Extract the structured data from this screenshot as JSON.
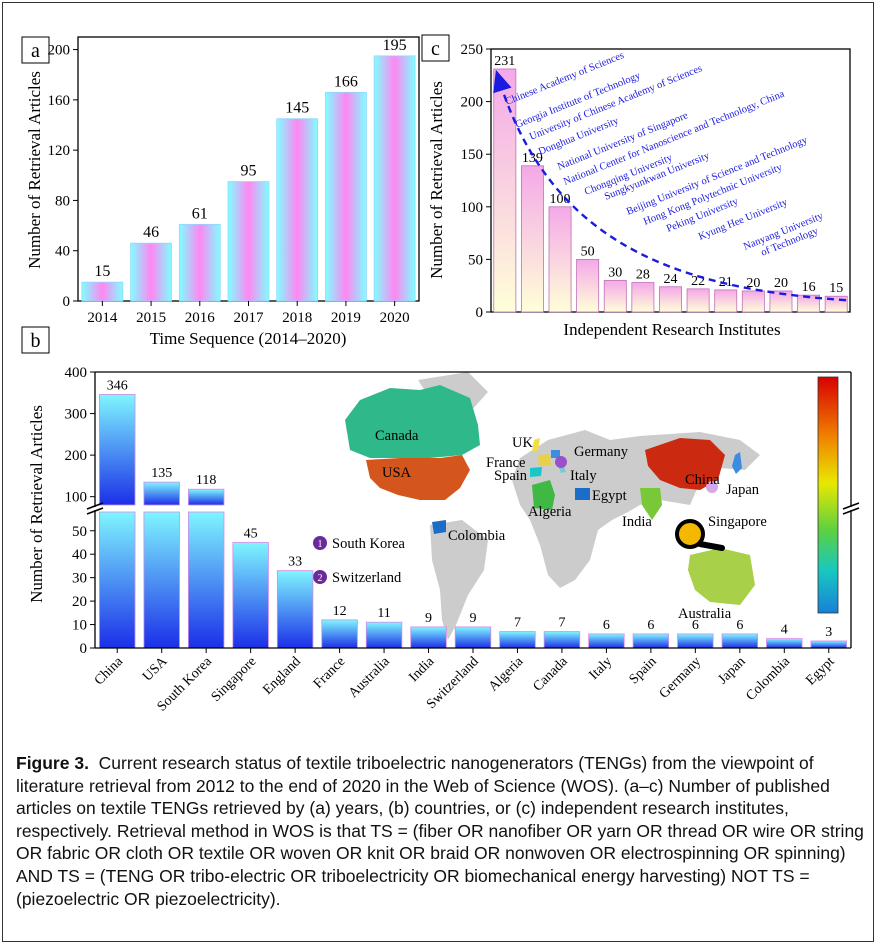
{
  "panels": {
    "a": {
      "letter": "a"
    },
    "b": {
      "letter": "b"
    },
    "c": {
      "letter": "c"
    }
  },
  "legend_b": {
    "items": [
      {
        "num": "1",
        "label": "South Korea"
      },
      {
        "num": "2",
        "label": "Switzerland"
      }
    ]
  },
  "map_labels": [
    "Canada",
    "USA",
    "UK",
    "Germany",
    "France",
    "Spain",
    "Italy",
    "Algeria",
    "Egypt",
    "China",
    "Japan",
    "India",
    "Singapore",
    "Colombia",
    "Australia"
  ],
  "chart_data": [
    {
      "type": "bar",
      "panel": "a",
      "categories": [
        "2014",
        "2015",
        "2016",
        "2017",
        "2018",
        "2019",
        "2020"
      ],
      "values": [
        15,
        46,
        61,
        95,
        145,
        166,
        195
      ],
      "xlabel": "Time Sequence (2014–2020)",
      "ylabel": "Number of Retrieval Articles",
      "ylim": [
        0,
        210
      ],
      "yticks": [
        0,
        40,
        80,
        120,
        160,
        200
      ]
    },
    {
      "type": "bar",
      "panel": "c",
      "categories": [
        "Chinese Academy of Sciences",
        "Georgia Institute of Technology",
        "University of Chinese Academy of Sciences",
        "Donghua University",
        "National University of Singapore",
        "National Center for Nanoscience and Technology, China",
        "Chongqing University",
        "Sungkyunkwan University",
        "Beijing University of Science and Technology",
        "Hong Kong Polytechnic University",
        "Peking University",
        "Kyung Hee University",
        "Nanyang University of Technology"
      ],
      "values": [
        231,
        139,
        100,
        50,
        30,
        28,
        24,
        22,
        21,
        20,
        20,
        16,
        15
      ],
      "xlabel": "Independent Research Institutes",
      "ylabel": "Number of Retrieval Articles",
      "ylim": [
        0,
        250
      ],
      "yticks": [
        0,
        50,
        100,
        150,
        200,
        250
      ]
    },
    {
      "type": "bar",
      "panel": "b",
      "categories": [
        "China",
        "USA",
        "South Korea",
        "Singapore",
        "England",
        "France",
        "Australia",
        "India",
        "Switzerland",
        "Algeria",
        "Canada",
        "Italy",
        "Spain",
        "Germany",
        "Japan",
        "Colombia",
        "Egypt"
      ],
      "values": [
        346,
        135,
        118,
        45,
        33,
        12,
        11,
        9,
        9,
        7,
        7,
        6,
        6,
        6,
        6,
        4,
        3
      ],
      "ylabel": "Number of Retrieval Articles",
      "ylim": [
        0,
        400
      ],
      "axis_break": [
        58,
        80
      ],
      "yticks_lower": [
        0,
        10,
        20,
        30,
        40,
        50
      ],
      "yticks_upper": [
        100,
        200,
        300,
        400
      ]
    }
  ],
  "caption": {
    "label": "Figure 3.",
    "text": "Current research status of textile triboelectric nanogenerators (TENGs) from the viewpoint of literature retrieval from 2012 to the end of 2020 in the Web of Science (WOS). (a–c) Number of published articles on textile TENGs retrieved by (a) years, (b) countries, or (c) independent research institutes, respectively. Retrieval method in WOS is that TS = (fiber OR nanofiber OR yarn OR thread OR wire OR string OR fabric OR cloth OR textile OR woven OR knit OR braid OR nonwoven OR electrospinning OR spinning) AND TS = (TENG OR tribo-electric OR triboelectricity OR biomechanical energy harvesting) NOT TS = (piezoelectric OR piezoelectricity)."
  }
}
